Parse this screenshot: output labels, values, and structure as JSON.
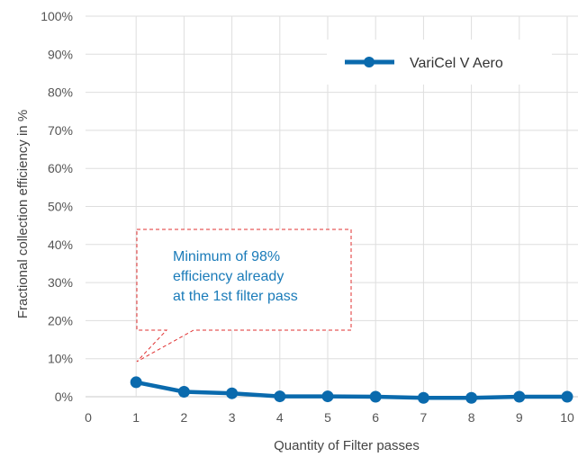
{
  "chart_data": {
    "type": "line",
    "title": "",
    "xlabel": "Quantity of Filter passes",
    "ylabel": "Fractional collection efficiency in %",
    "xlim": [
      0,
      10
    ],
    "ylim": [
      0,
      100
    ],
    "x_ticks": [
      "0",
      "1",
      "2",
      "3",
      "4",
      "5",
      "6",
      "7",
      "8",
      "9",
      "10"
    ],
    "y_ticks": [
      "0%",
      "10%",
      "20%",
      "30%",
      "40%",
      "50%",
      "60%",
      "70%",
      "80%",
      "90%",
      "100%"
    ],
    "grid": true,
    "legend_position": "top-right",
    "series": [
      {
        "name": "VariCel V Aero",
        "color": "#0a6aad",
        "x": [
          1,
          2,
          3,
          4,
          5,
          6,
          7,
          8,
          9,
          10
        ],
        "values": [
          3.8,
          1.3,
          0.9,
          0.1,
          0.1,
          0.0,
          -0.3,
          -0.3,
          0.0,
          0.0
        ]
      }
    ],
    "annotations": [
      {
        "lines": [
          "Minimum of 98%",
          "efficiency already",
          "at the 1st filter pass"
        ],
        "color": "#1a7bb9",
        "border_color": "#e03030",
        "points_to": {
          "x": 1,
          "y": 3.8
        }
      }
    ]
  }
}
